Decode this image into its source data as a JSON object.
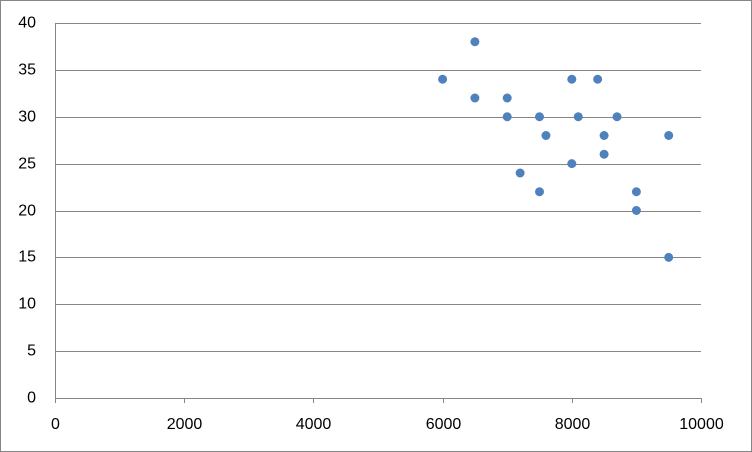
{
  "chart_data": {
    "type": "scatter",
    "x": [
      6000,
      6500,
      6500,
      7000,
      7000,
      7500,
      7600,
      7200,
      7500,
      8000,
      8400,
      8100,
      8700,
      8500,
      8500,
      8000,
      9500,
      9000,
      9000,
      9500
    ],
    "values": [
      34,
      38,
      32,
      32,
      30,
      30,
      28,
      24,
      22,
      34,
      34,
      30,
      30,
      28,
      26,
      25,
      28,
      22,
      20,
      15
    ],
    "color": "#4f81bd",
    "xlim": [
      0,
      10000
    ],
    "xticks": [
      0,
      2000,
      4000,
      6000,
      8000,
      10000
    ],
    "ylim": [
      0,
      40
    ],
    "yticks": [
      0,
      5,
      10,
      15,
      20,
      25,
      30,
      35,
      40
    ],
    "grid": true
  }
}
